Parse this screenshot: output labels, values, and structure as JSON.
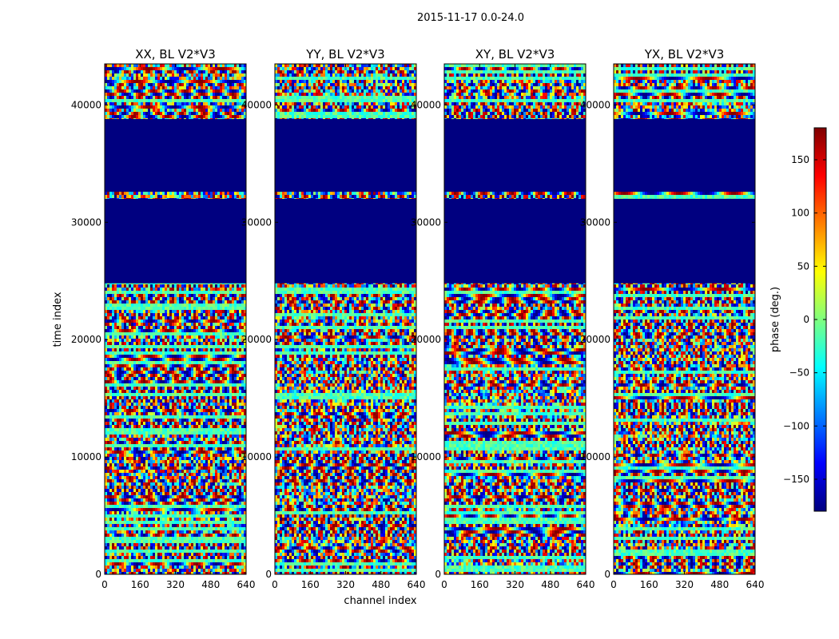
{
  "figure": {
    "suptitle": "2015-11-17 0.0-24.0",
    "ylabel": "time index",
    "xlabel": "channel index"
  },
  "colorbar": {
    "label": "phase (deg.)",
    "range": [
      -180,
      180
    ],
    "ticks": [
      150,
      100,
      50,
      0,
      -50,
      -100,
      -150
    ],
    "colormap": "jet",
    "colors": [
      "#00007f",
      "#0000ff",
      "#007fff",
      "#00ffff",
      "#7fff7f",
      "#ffff00",
      "#ff7f00",
      "#ff0000",
      "#7f0000"
    ]
  },
  "chart_data": [
    {
      "type": "heatmap",
      "title": "XX, BL V2*V3",
      "xlim": [
        0,
        640
      ],
      "ylim": [
        0,
        43500
      ],
      "xticks": [
        0,
        160,
        320,
        480,
        640
      ],
      "yticks": [
        0,
        10000,
        20000,
        30000,
        40000
      ],
      "zlim": [
        -180,
        180
      ],
      "flagged_time_ranges": [
        [
          24800,
          32000
        ],
        [
          32600,
          38800
        ]
      ],
      "flagged_value": -180
    },
    {
      "type": "heatmap",
      "title": "YY, BL V2*V3",
      "xlim": [
        0,
        640
      ],
      "ylim": [
        0,
        43500
      ],
      "xticks": [
        0,
        160,
        320,
        480,
        640
      ],
      "yticks": [
        0,
        10000,
        20000,
        30000,
        40000
      ],
      "zlim": [
        -180,
        180
      ],
      "flagged_time_ranges": [
        [
          24800,
          32000
        ],
        [
          32600,
          38800
        ]
      ],
      "flagged_value": -180
    },
    {
      "type": "heatmap",
      "title": "XY, BL V2*V3",
      "xlim": [
        0,
        640
      ],
      "ylim": [
        0,
        43500
      ],
      "xticks": [
        0,
        160,
        320,
        480,
        640
      ],
      "yticks": [
        0,
        10000,
        20000,
        30000,
        40000
      ],
      "zlim": [
        -180,
        180
      ],
      "flagged_time_ranges": [
        [
          24800,
          32000
        ],
        [
          32600,
          38800
        ]
      ],
      "flagged_value": -180
    },
    {
      "type": "heatmap",
      "title": "YX, BL V2*V3",
      "xlim": [
        0,
        640
      ],
      "ylim": [
        0,
        43500
      ],
      "xticks": [
        0,
        160,
        320,
        480,
        640
      ],
      "yticks": [
        0,
        10000,
        20000,
        30000,
        40000
      ],
      "zlim": [
        -180,
        180
      ],
      "flagged_time_ranges": [
        [
          24800,
          32000
        ],
        [
          32600,
          38800
        ]
      ],
      "flagged_value": -180
    }
  ]
}
